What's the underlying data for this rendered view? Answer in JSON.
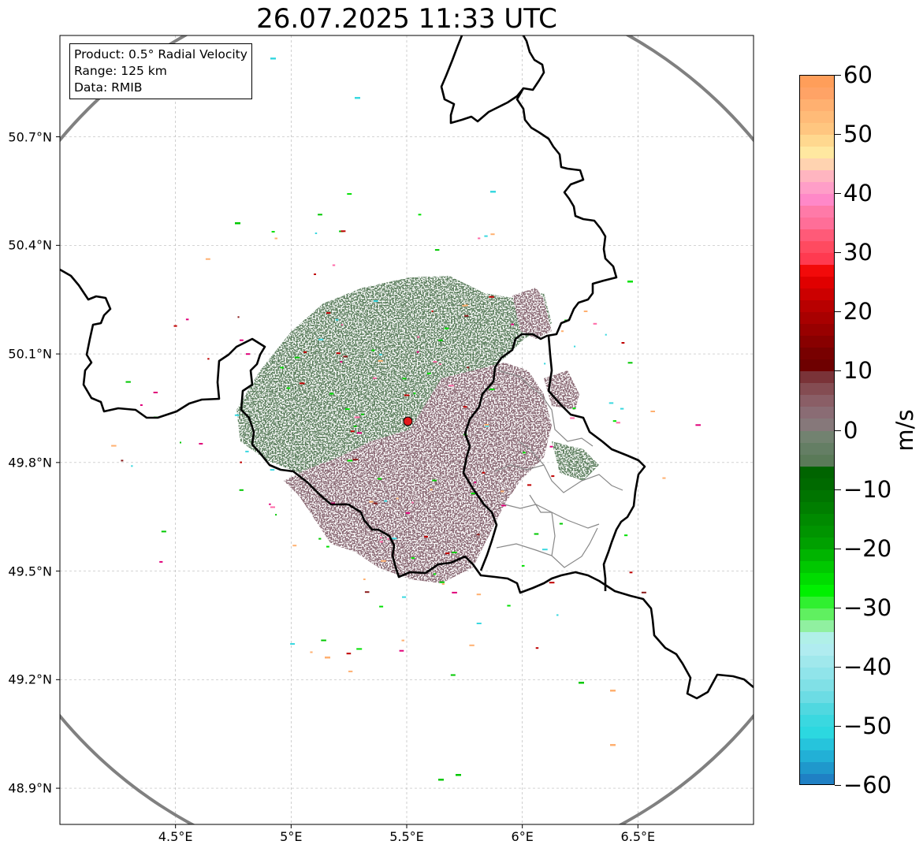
{
  "title": "26.07.2025 11:33 UTC",
  "info_box": {
    "lines": [
      "Product: 0.5° Radial Velocity",
      "Range: 125 km",
      "Data: RMIB"
    ]
  },
  "map": {
    "lon_range": [
      4.0,
      7.0
    ],
    "lat_range": [
      48.8,
      50.98
    ],
    "lat_ticks": [
      {
        "value": 50.7,
        "label": "50.7°N"
      },
      {
        "value": 50.4,
        "label": "50.4°N"
      },
      {
        "value": 50.1,
        "label": "50.1°N"
      },
      {
        "value": 49.8,
        "label": "49.8°N"
      },
      {
        "value": 49.5,
        "label": "49.5°N"
      },
      {
        "value": 49.2,
        "label": "49.2°N"
      },
      {
        "value": 48.9,
        "label": "48.9°N"
      }
    ],
    "lon_ticks": [
      {
        "value": 4.5,
        "label": "4.5°E"
      },
      {
        "value": 5.0,
        "label": "5°E"
      },
      {
        "value": 5.5,
        "label": "5.5°E"
      },
      {
        "value": 6.0,
        "label": "6°E"
      },
      {
        "value": 6.5,
        "label": "6.5°E"
      }
    ],
    "grid": true,
    "radar_site": {
      "lon": 5.505,
      "lat": 49.914
    },
    "range_ring_km": 125,
    "colors": {
      "range_ring": "#808080",
      "border": "#000000",
      "canton_lines": "#888888",
      "radar_marker": "#e31a1c",
      "echo_toward": "#5e8060",
      "echo_away": "#8a6a74"
    }
  },
  "colorbar": {
    "min": -60,
    "max": 60,
    "label": "m/s",
    "ticks": [
      {
        "value": 60,
        "label": "60"
      },
      {
        "value": 50,
        "label": "50"
      },
      {
        "value": 40,
        "label": "40"
      },
      {
        "value": 30,
        "label": "30"
      },
      {
        "value": 20,
        "label": "20"
      },
      {
        "value": 10,
        "label": "10"
      },
      {
        "value": 0,
        "label": "0"
      },
      {
        "value": -10,
        "label": "−10"
      },
      {
        "value": -20,
        "label": "−20"
      },
      {
        "value": -30,
        "label": "−30"
      },
      {
        "value": -40,
        "label": "−40"
      },
      {
        "value": -50,
        "label": "−50"
      },
      {
        "value": -60,
        "label": "−60"
      }
    ],
    "bands": [
      {
        "from": 58,
        "to": 60,
        "color": "#ff9e5a"
      },
      {
        "from": 56,
        "to": 58,
        "color": "#ffa366"
      },
      {
        "from": 54,
        "to": 56,
        "color": "#ffb070"
      },
      {
        "from": 52,
        "to": 54,
        "color": "#ffbb78"
      },
      {
        "from": 50,
        "to": 52,
        "color": "#ffc680"
      },
      {
        "from": 48,
        "to": 50,
        "color": "#ffd88f"
      },
      {
        "from": 46,
        "to": 48,
        "color": "#ffe8a0"
      },
      {
        "from": 44,
        "to": 46,
        "color": "#ffd3b0"
      },
      {
        "from": 42,
        "to": 44,
        "color": "#ffb5c0"
      },
      {
        "from": 40,
        "to": 42,
        "color": "#ff9ec8"
      },
      {
        "from": 38,
        "to": 40,
        "color": "#ff88c8"
      },
      {
        "from": 36,
        "to": 38,
        "color": "#ff7aa8"
      },
      {
        "from": 34,
        "to": 36,
        "color": "#ff6e98"
      },
      {
        "from": 32,
        "to": 34,
        "color": "#ff5a78"
      },
      {
        "from": 30,
        "to": 32,
        "color": "#ff4a60"
      },
      {
        "from": 28,
        "to": 30,
        "color": "#ff3a50"
      },
      {
        "from": 26,
        "to": 28,
        "color": "#f20a0a"
      },
      {
        "from": 24,
        "to": 26,
        "color": "#e00000"
      },
      {
        "from": 22,
        "to": 24,
        "color": "#cc0000"
      },
      {
        "from": 20,
        "to": 22,
        "color": "#b80000"
      },
      {
        "from": 18,
        "to": 20,
        "color": "#a80000"
      },
      {
        "from": 16,
        "to": 18,
        "color": "#980000"
      },
      {
        "from": 14,
        "to": 16,
        "color": "#880000"
      },
      {
        "from": 12,
        "to": 14,
        "color": "#780000"
      },
      {
        "from": 10,
        "to": 12,
        "color": "#6e0000"
      },
      {
        "from": 8,
        "to": 10,
        "color": "#7a3338"
      },
      {
        "from": 6,
        "to": 8,
        "color": "#844c52"
      },
      {
        "from": 4,
        "to": 6,
        "color": "#8a5e66"
      },
      {
        "from": 2,
        "to": 4,
        "color": "#8a6c74"
      },
      {
        "from": 0,
        "to": 2,
        "color": "#86787a"
      },
      {
        "from": -2,
        "to": 0,
        "color": "#728270"
      },
      {
        "from": -4,
        "to": -2,
        "color": "#647e64"
      },
      {
        "from": -6,
        "to": -4,
        "color": "#5a7a58"
      },
      {
        "from": -8,
        "to": -6,
        "color": "#006400"
      },
      {
        "from": -10,
        "to": -8,
        "color": "#006a00"
      },
      {
        "from": -12,
        "to": -10,
        "color": "#007400"
      },
      {
        "from": -14,
        "to": -12,
        "color": "#007e00"
      },
      {
        "from": -16,
        "to": -14,
        "color": "#008a00"
      },
      {
        "from": -18,
        "to": -16,
        "color": "#009400"
      },
      {
        "from": -20,
        "to": -18,
        "color": "#00a000"
      },
      {
        "from": -22,
        "to": -20,
        "color": "#00b400"
      },
      {
        "from": -24,
        "to": -22,
        "color": "#00c800"
      },
      {
        "from": -26,
        "to": -24,
        "color": "#00dc00"
      },
      {
        "from": -28,
        "to": -26,
        "color": "#00f000"
      },
      {
        "from": -30,
        "to": -28,
        "color": "#30f030"
      },
      {
        "from": -32,
        "to": -30,
        "color": "#60f060"
      },
      {
        "from": -34,
        "to": -32,
        "color": "#90f0a0"
      },
      {
        "from": -36,
        "to": -34,
        "color": "#b0f0e8"
      },
      {
        "from": -38,
        "to": -36,
        "color": "#b0ecf0"
      },
      {
        "from": -40,
        "to": -38,
        "color": "#a0e8ec"
      },
      {
        "from": -42,
        "to": -40,
        "color": "#90e4ea"
      },
      {
        "from": -44,
        "to": -42,
        "color": "#80e0e6"
      },
      {
        "from": -46,
        "to": -44,
        "color": "#6cdce4"
      },
      {
        "from": -48,
        "to": -46,
        "color": "#50d8e0"
      },
      {
        "from": -50,
        "to": -48,
        "color": "#3ad8e0"
      },
      {
        "from": -52,
        "to": -50,
        "color": "#2cd8e0"
      },
      {
        "from": -54,
        "to": -52,
        "color": "#26c4dc"
      },
      {
        "from": -56,
        "to": -54,
        "color": "#22b0d6"
      },
      {
        "from": -58,
        "to": -56,
        "color": "#1f98cc"
      },
      {
        "from": -60,
        "to": -58,
        "color": "#1f80c4"
      }
    ]
  }
}
